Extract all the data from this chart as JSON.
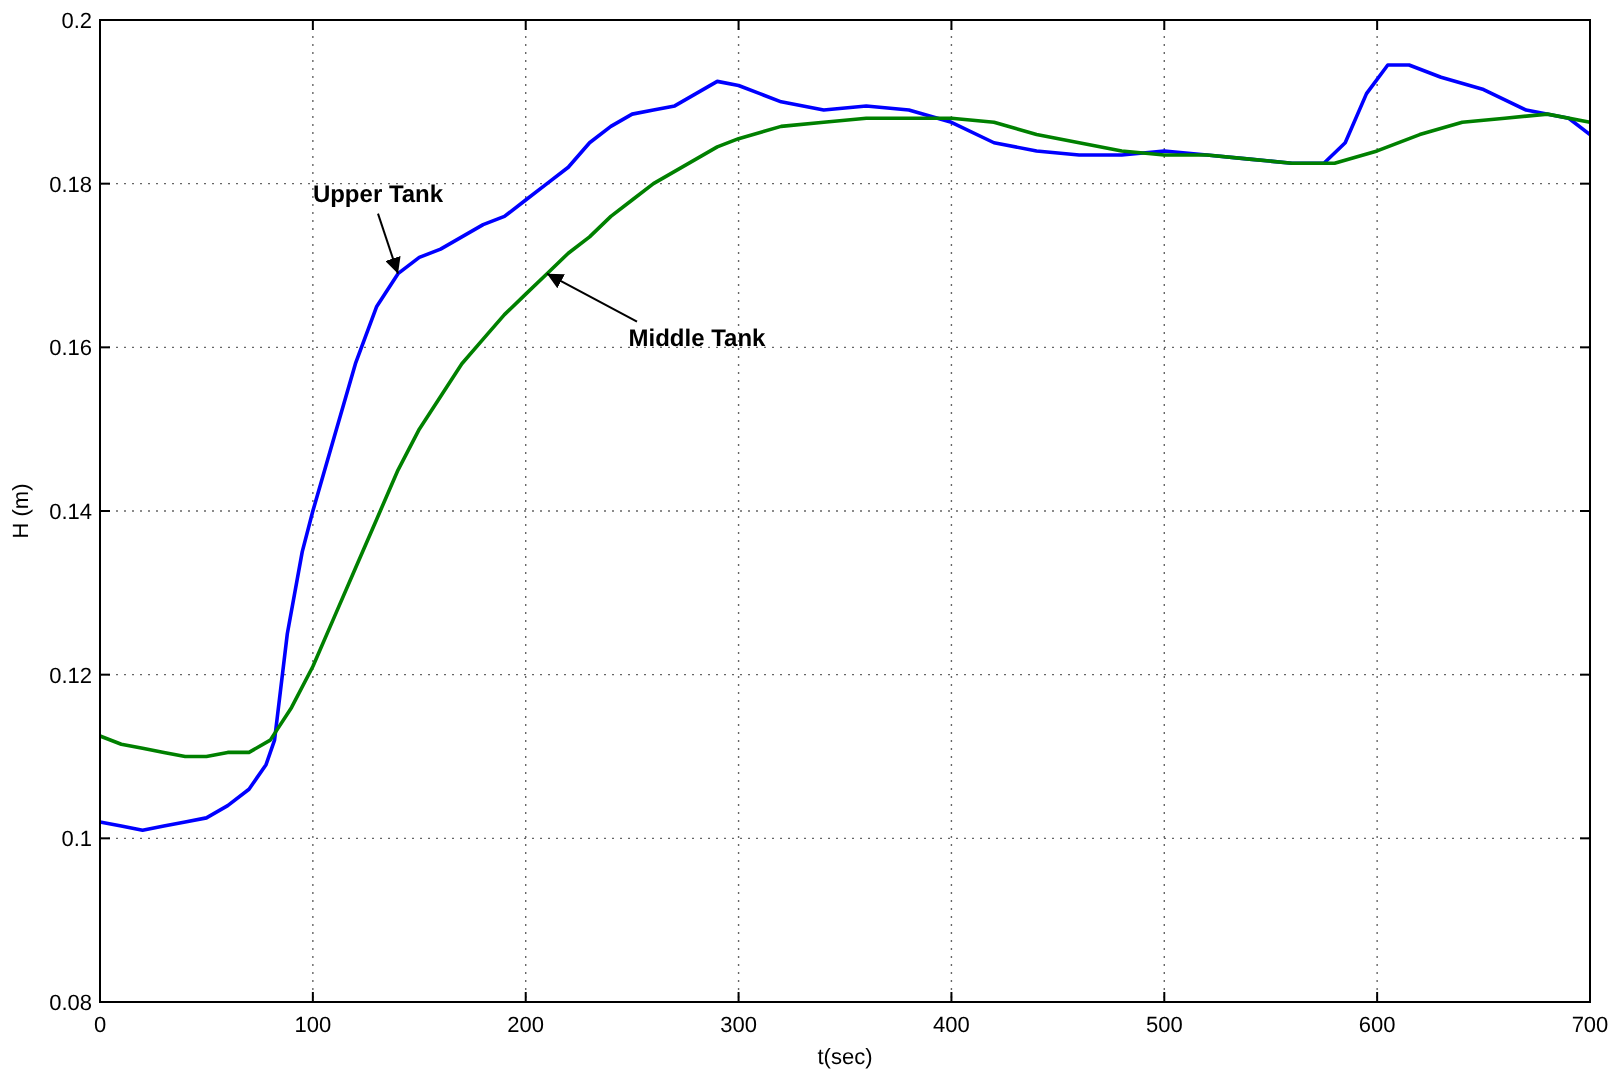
{
  "chart_data": {
    "type": "line",
    "xlabel": "t(sec)",
    "ylabel": "H (m)",
    "xlim": [
      0,
      700
    ],
    "ylim": [
      0.08,
      0.2
    ],
    "xticks": [
      0,
      100,
      200,
      300,
      400,
      500,
      600,
      700
    ],
    "yticks": [
      0.08,
      0.1,
      0.12,
      0.14,
      0.16,
      0.18,
      0.2
    ],
    "grid": true,
    "marker": "none",
    "line_style": "solid",
    "annotations": [
      {
        "text": "Upper Tank",
        "x": 140,
        "y": 0.169
      },
      {
        "text": "Middle Tank",
        "x": 210,
        "y": 0.169
      }
    ],
    "series": [
      {
        "color": "#0000ff",
        "x": [
          0,
          10,
          20,
          30,
          40,
          50,
          60,
          70,
          78,
          82,
          88,
          95,
          100,
          110,
          120,
          130,
          140,
          150,
          160,
          170,
          180,
          190,
          200,
          210,
          220,
          230,
          240,
          250,
          260,
          270,
          280,
          290,
          300,
          310,
          320,
          340,
          360,
          380,
          400,
          420,
          440,
          460,
          480,
          500,
          520,
          540,
          560,
          575,
          585,
          595,
          605,
          615,
          630,
          650,
          670,
          690,
          700
        ],
        "values": [
          0.102,
          0.1015,
          0.101,
          0.1015,
          0.102,
          0.1025,
          0.104,
          0.106,
          0.109,
          0.112,
          0.125,
          0.135,
          0.14,
          0.149,
          0.158,
          0.165,
          0.169,
          0.171,
          0.172,
          0.1735,
          0.175,
          0.176,
          0.178,
          0.18,
          0.182,
          0.185,
          0.187,
          0.1885,
          0.189,
          0.1895,
          0.191,
          0.1925,
          0.192,
          0.191,
          0.19,
          0.189,
          0.1895,
          0.189,
          0.1875,
          0.185,
          0.184,
          0.1835,
          0.1835,
          0.184,
          0.1835,
          0.183,
          0.1825,
          0.1825,
          0.185,
          0.191,
          0.1945,
          0.1945,
          0.193,
          0.1915,
          0.189,
          0.188,
          0.186
        ]
      },
      {
        "color": "#008000",
        "x": [
          0,
          10,
          20,
          30,
          40,
          50,
          60,
          70,
          80,
          90,
          100,
          110,
          120,
          130,
          140,
          150,
          160,
          170,
          180,
          190,
          200,
          210,
          220,
          230,
          240,
          250,
          260,
          270,
          280,
          290,
          300,
          320,
          340,
          360,
          380,
          400,
          420,
          440,
          460,
          480,
          500,
          520,
          540,
          560,
          580,
          600,
          620,
          640,
          660,
          680,
          700
        ],
        "values": [
          0.1125,
          0.1115,
          0.111,
          0.1105,
          0.11,
          0.11,
          0.1105,
          0.1105,
          0.112,
          0.116,
          0.121,
          0.127,
          0.133,
          0.139,
          0.145,
          0.15,
          0.154,
          0.158,
          0.161,
          0.164,
          0.1665,
          0.169,
          0.1715,
          0.1735,
          0.176,
          0.178,
          0.18,
          0.1815,
          0.183,
          0.1845,
          0.1855,
          0.187,
          0.1875,
          0.188,
          0.188,
          0.188,
          0.1875,
          0.186,
          0.185,
          0.184,
          0.1835,
          0.1835,
          0.183,
          0.1825,
          0.1825,
          0.184,
          0.186,
          0.1875,
          0.188,
          0.1885,
          0.1875
        ]
      }
    ]
  }
}
